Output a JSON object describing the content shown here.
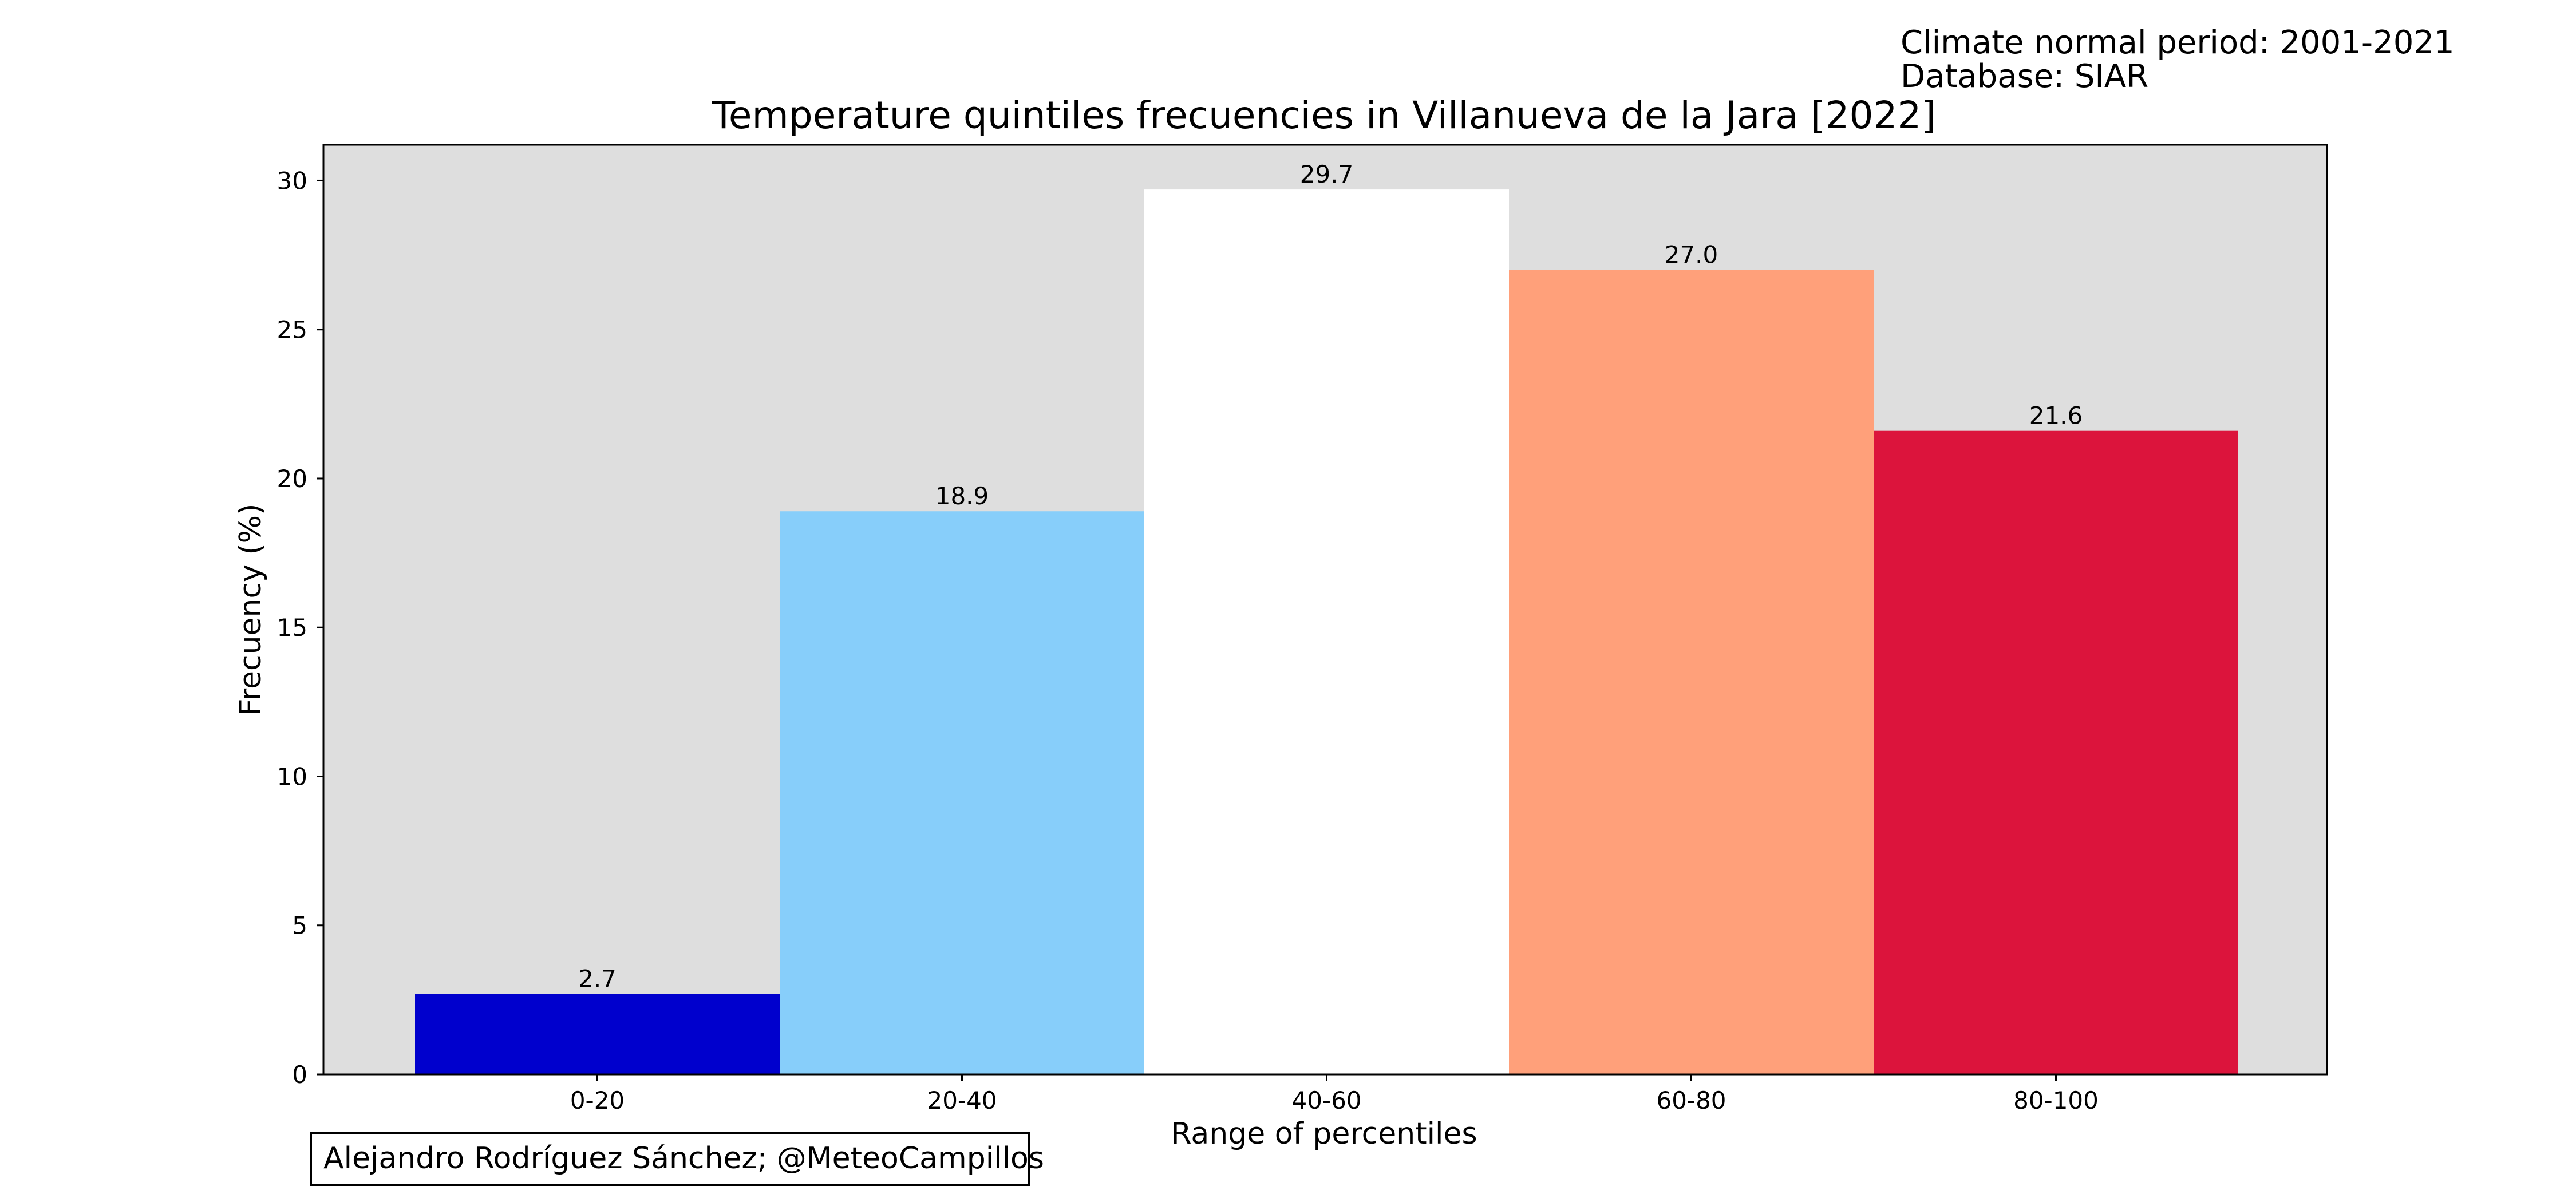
{
  "header": {
    "climate_period": "Climate normal period: 2001-2021",
    "database": "Database: SIAR"
  },
  "credit": "Alejandro Rodríguez Sánchez; @MeteoCampillos",
  "chart_data": {
    "type": "bar",
    "title": "Temperature quintiles frecuencies in Villanueva de la Jara [2022]",
    "xlabel": "Range of percentiles",
    "ylabel": "Frecuency (%)",
    "categories": [
      "0-20",
      "20-40",
      "40-60",
      "60-80",
      "80-100"
    ],
    "values": [
      2.7,
      18.9,
      29.7,
      27.0,
      21.6
    ],
    "value_labels": [
      "2.7",
      "18.9",
      "29.7",
      "27.0",
      "21.6"
    ],
    "colors": [
      "#0000cd",
      "#87cefa",
      "#ffffff",
      "#ffa07a",
      "#dc143c"
    ],
    "ylim": [
      0,
      31.2
    ],
    "yticks": [
      0,
      5,
      10,
      15,
      20,
      25,
      30
    ],
    "background_color": "#dedede",
    "grid": false,
    "legend": "none"
  }
}
